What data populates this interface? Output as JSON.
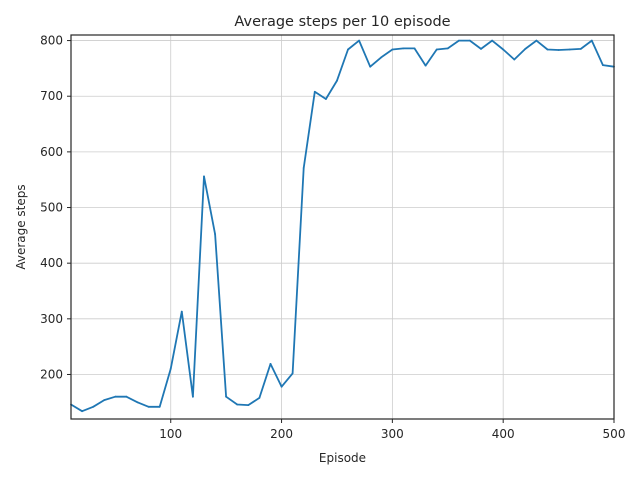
{
  "chart_data": {
    "type": "line",
    "title": "Average steps per 10 episode",
    "xlabel": "Episode",
    "ylabel": "Average steps",
    "xlim": [
      10,
      500
    ],
    "ylim": [
      120,
      810
    ],
    "xticks": [
      100,
      200,
      300,
      400,
      500
    ],
    "yticks": [
      200,
      300,
      400,
      500,
      600,
      700,
      800
    ],
    "grid": true,
    "series": [
      {
        "color": "#1f77b4",
        "x": [
          10,
          20,
          30,
          40,
          50,
          60,
          70,
          80,
          90,
          100,
          110,
          120,
          130,
          140,
          150,
          160,
          170,
          180,
          190,
          200,
          210,
          220,
          230,
          240,
          250,
          260,
          270,
          280,
          290,
          300,
          310,
          320,
          330,
          340,
          350,
          360,
          370,
          380,
          390,
          400,
          410,
          420,
          430,
          440,
          450,
          460,
          470,
          480,
          490,
          500
        ],
        "values": [
          146,
          134,
          142,
          154,
          160,
          160,
          150,
          142,
          142,
          210,
          313,
          160,
          556,
          452,
          160,
          146,
          145,
          158,
          219,
          178,
          202,
          571,
          708,
          695,
          728,
          784,
          800,
          753,
          770,
          784,
          786,
          786,
          755,
          784,
          786,
          800,
          800,
          785,
          800,
          784,
          766,
          785,
          800,
          784,
          783,
          784,
          785,
          800,
          756,
          753
        ]
      }
    ]
  }
}
